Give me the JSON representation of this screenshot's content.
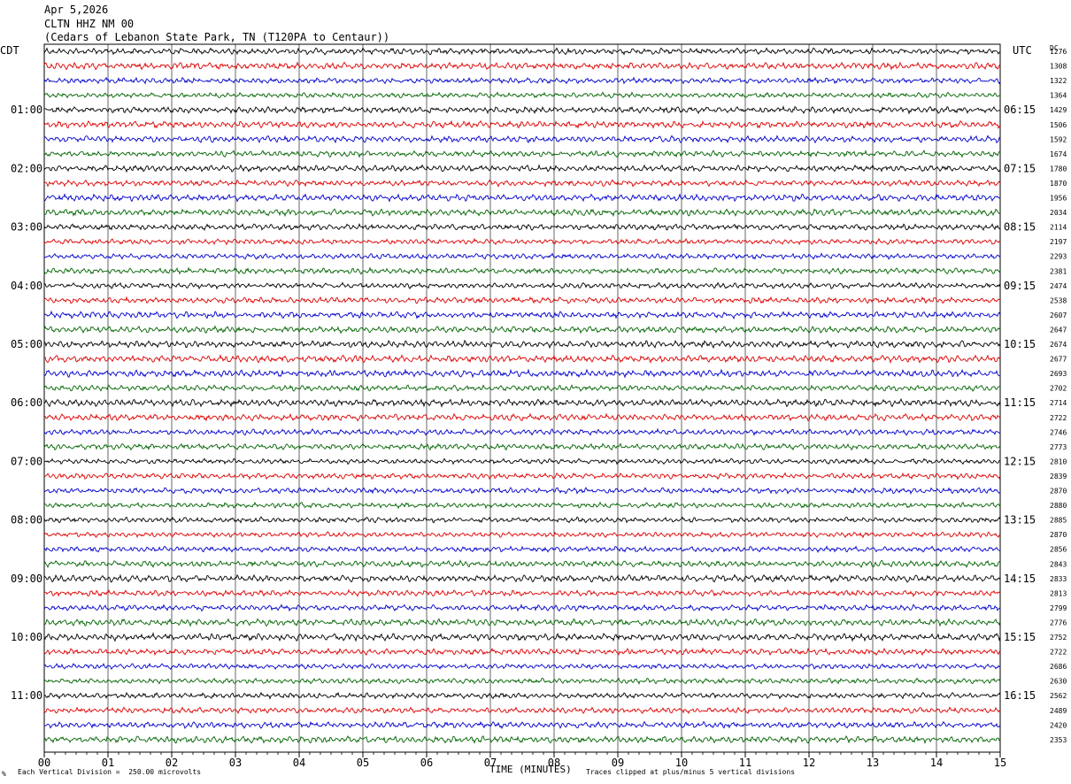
{
  "header": {
    "date": "Apr 5,2026",
    "station": "CLTN HHZ NM 00",
    "location": "(Cedars of Lebanon State Park, TN (T120PA to Centaur))"
  },
  "left_axis_title": "CDT",
  "right_axis_title": "UTC",
  "dc_title": "DC",
  "footer": {
    "scale_note": "Each Vertical Division =  250.00 microvolts",
    "xlabel": "TIME (MINUTES)",
    "clip_note": "Traces clipped at plus/minus 5 vertical divisions",
    "corner_mark": "%"
  },
  "chart_data": {
    "type": "line",
    "title": "CLTN HHZ NM 00",
    "xlabel": "TIME (MINUTES)",
    "xlim": [
      0,
      15
    ],
    "x_ticks": [
      "00",
      "01",
      "02",
      "03",
      "04",
      "05",
      "06",
      "07",
      "08",
      "09",
      "10",
      "11",
      "12",
      "13",
      "14",
      "15"
    ],
    "trace_colors": [
      "#000000",
      "#dd0000",
      "#0000cc",
      "#006400"
    ],
    "cdt_hour_labels": [
      "01:00",
      "02:00",
      "03:00",
      "04:00",
      "05:00",
      "06:00",
      "07:00",
      "08:00",
      "09:00",
      "10:00",
      "11:00"
    ],
    "utc_hour_labels": [
      "06:15",
      "07:15",
      "08:15",
      "09:15",
      "10:15",
      "11:15",
      "12:15",
      "13:15",
      "14:15",
      "15:15",
      "16:15"
    ],
    "dc_offsets": [
      1276,
      1308,
      1322,
      1364,
      1429,
      1506,
      1592,
      1674,
      1780,
      1870,
      1956,
      2034,
      2114,
      2197,
      2293,
      2381,
      2474,
      2538,
      2607,
      2647,
      2674,
      2677,
      2693,
      2702,
      2714,
      2722,
      2746,
      2773,
      2810,
      2839,
      2870,
      2880,
      2885,
      2870,
      2856,
      2843,
      2833,
      2813,
      2799,
      2776,
      2752,
      2722,
      2686,
      2630,
      2562,
      2489,
      2420,
      2353
    ]
  }
}
